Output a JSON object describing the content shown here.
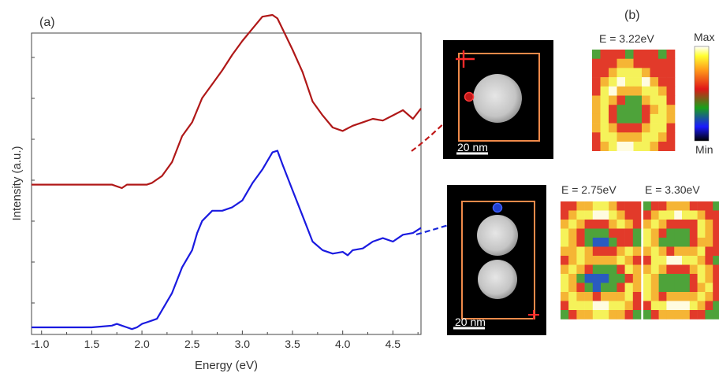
{
  "figure": {
    "panel_a_label": "(a)",
    "panel_b_label": "(b)",
    "colorbar": {
      "max_label": "Max",
      "min_label": "Min"
    },
    "images": [
      {
        "scale_bar": "20 nm"
      },
      {
        "scale_bar": "20 nm"
      }
    ],
    "maps": [
      {
        "title": "E = 3.22eV"
      },
      {
        "title": "E = 2.75eV"
      },
      {
        "title": "E = 3.30eV"
      }
    ],
    "colors": {
      "red_series": "#b01818",
      "blue_series": "#1a1ae0",
      "box": "#f08a4a"
    }
  },
  "chart_data": {
    "type": "line",
    "xlabel": "Energy (eV)",
    "ylabel": "Intensity (a.u.)",
    "xlim": [
      0.9,
      4.78
    ],
    "x_ticks": [
      "1.0",
      "1.5",
      "2.0",
      "2.5",
      "3.0",
      "3.5",
      "4.0",
      "4.5"
    ],
    "y_tick_labels_shown": false,
    "grid": false,
    "series": [
      {
        "color": "#b01818",
        "x": [
          0.9,
          1.6,
          1.7,
          1.75,
          1.8,
          1.85,
          1.9,
          2.0,
          2.05,
          2.1,
          2.15,
          2.2,
          2.3,
          2.4,
          2.5,
          2.6,
          2.7,
          2.8,
          2.9,
          3.0,
          3.1,
          3.2,
          3.3,
          3.35,
          3.4,
          3.5,
          3.6,
          3.7,
          3.8,
          3.9,
          4.0,
          4.1,
          4.2,
          4.3,
          4.4,
          4.5,
          4.6,
          4.7,
          4.78
        ],
        "y": [
          0.22,
          0.22,
          0.22,
          0.21,
          0.2,
          0.22,
          0.22,
          0.22,
          0.22,
          0.23,
          0.25,
          0.27,
          0.35,
          0.5,
          0.58,
          0.72,
          0.8,
          0.88,
          0.97,
          1.05,
          1.12,
          1.19,
          1.2,
          1.18,
          1.12,
          1.0,
          0.87,
          0.7,
          0.62,
          0.55,
          0.53,
          0.56,
          0.58,
          0.6,
          0.59,
          0.62,
          0.65,
          0.6,
          0.66
        ]
      },
      {
        "color": "#1a1ae0",
        "x": [
          0.9,
          1.5,
          1.7,
          1.75,
          1.8,
          1.85,
          1.9,
          1.95,
          2.0,
          2.05,
          2.1,
          2.15,
          2.2,
          2.3,
          2.4,
          2.5,
          2.55,
          2.6,
          2.7,
          2.8,
          2.9,
          3.0,
          3.1,
          3.2,
          3.3,
          3.35,
          3.4,
          3.5,
          3.6,
          3.7,
          3.8,
          3.9,
          4.0,
          4.05,
          4.1,
          4.2,
          4.3,
          4.4,
          4.5,
          4.6,
          4.7,
          4.78
        ],
        "y": [
          0.0,
          0.0,
          0.01,
          0.02,
          0.01,
          0.0,
          -0.01,
          0.0,
          0.02,
          0.03,
          0.04,
          0.05,
          0.1,
          0.2,
          0.35,
          0.45,
          0.55,
          0.62,
          0.68,
          0.68,
          0.7,
          0.74,
          0.84,
          0.92,
          1.02,
          1.03,
          0.95,
          0.8,
          0.65,
          0.5,
          0.45,
          0.43,
          0.44,
          0.42,
          0.45,
          0.46,
          0.5,
          0.52,
          0.5,
          0.54,
          0.55,
          0.58
        ]
      }
    ]
  }
}
